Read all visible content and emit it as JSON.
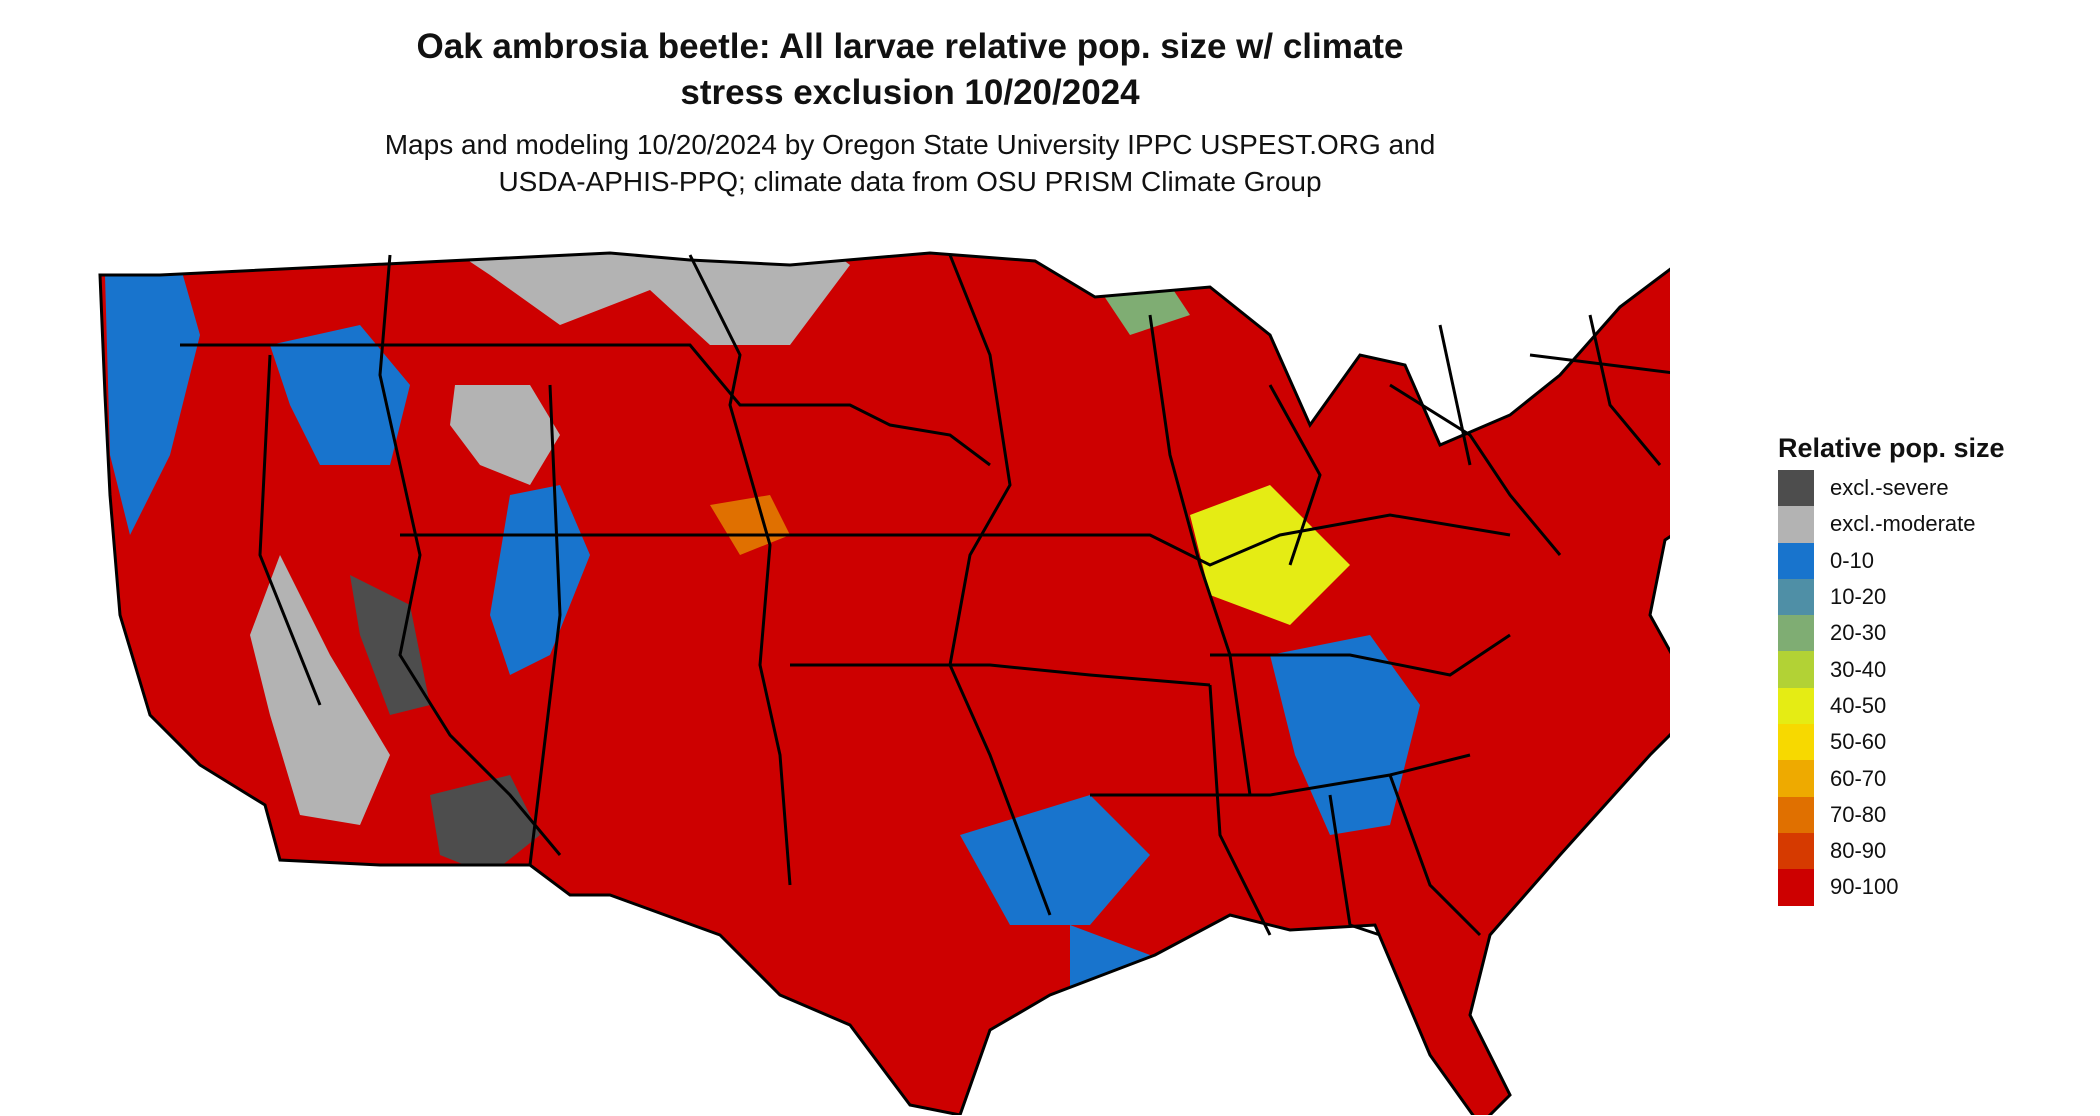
{
  "title_line1": "Oak ambrosia beetle: All larvae relative pop. size w/ climate",
  "title_line2": "stress exclusion 10/20/2024",
  "subtitle_line1": "Maps and modeling 10/20/2024 by Oregon State University IPPC USPEST.ORG and",
  "subtitle_line2": "USDA-APHIS-PPQ; climate data from OSU PRISM Climate Group",
  "legend": {
    "title": "Relative pop. size",
    "items": [
      {
        "label": "excl.-severe",
        "color": "#4d4d4d"
      },
      {
        "label": "excl.-moderate",
        "color": "#b3b3b3"
      },
      {
        "label": "0-10",
        "color": "#1874cd"
      },
      {
        "label": "10-20",
        "color": "#4f8fa6"
      },
      {
        "label": "20-30",
        "color": "#7fad73"
      },
      {
        "label": "30-40",
        "color": "#b2d235"
      },
      {
        "label": "40-50",
        "color": "#e5ec14"
      },
      {
        "label": "50-60",
        "color": "#f7d900"
      },
      {
        "label": "60-70",
        "color": "#eeaa00"
      },
      {
        "label": "70-80",
        "color": "#e07000"
      },
      {
        "label": "80-90",
        "color": "#d63a00"
      },
      {
        "label": "90-100",
        "color": "#cd0000"
      }
    ]
  }
}
